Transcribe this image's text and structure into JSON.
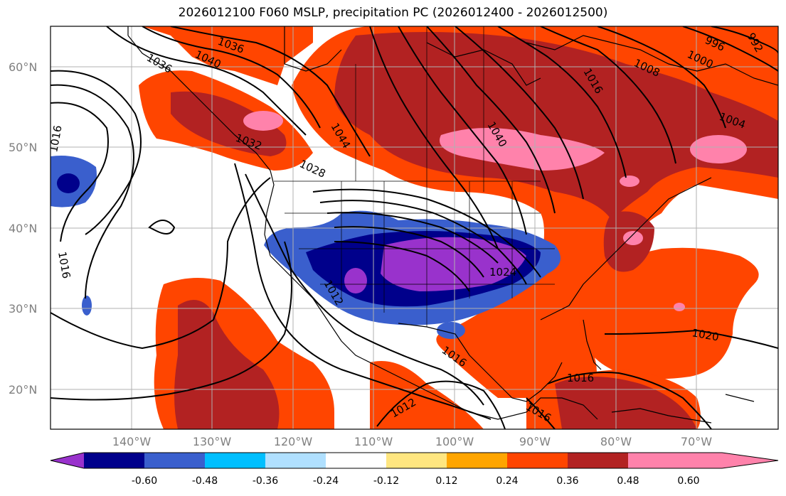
{
  "title": "2026012100 F060 MSLP, precipitation PC (2026012400 - 2026012500)",
  "map": {
    "lat_labels": [
      "60°N",
      "50°N",
      "40°N",
      "30°N",
      "20°N"
    ],
    "lon_labels": [
      "140°W",
      "130°W",
      "120°W",
      "110°W",
      "100°W",
      "90°W",
      "80°W",
      "70°W"
    ],
    "isobar_labels": [
      "1036",
      "1040",
      "1036",
      "1016",
      "1016",
      "1032",
      "1028",
      "1044",
      "1040",
      "1016",
      "1008",
      "1000",
      "996",
      "992",
      "1004",
      "1024",
      "1012",
      "1016",
      "1020",
      "1016",
      "1012",
      "1016"
    ]
  },
  "colorbar": {
    "ticks": [
      "-0.60",
      "-0.48",
      "-0.36",
      "-0.24",
      "-0.12",
      "0.12",
      "0.24",
      "0.36",
      "0.48",
      "0.60"
    ],
    "colors": [
      "#9932cc",
      "#00008b",
      "#3a5fcd",
      "#00bfff",
      "#b0e0ff",
      "#ffffff",
      "#ffe680",
      "#ffa500",
      "#ff4500",
      "#b22222",
      "#ff82ab"
    ]
  }
}
